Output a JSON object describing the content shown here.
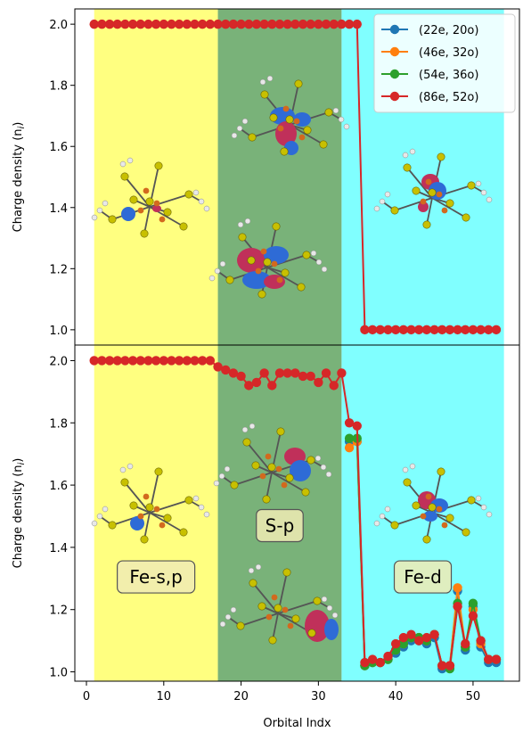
{
  "chart_data": {
    "type": "line",
    "shared_x_axis": {
      "xlabel": "Orbital Indx",
      "xlim": [
        -1.5,
        56
      ],
      "ticks": [
        0,
        10,
        20,
        30,
        40,
        50
      ],
      "tick_labels": [
        "0",
        "10",
        "20",
        "30",
        "40",
        "50"
      ]
    },
    "legend": {
      "placement": "top-right",
      "entries": [
        {
          "label": "(22e, 20o)",
          "color": "#1f77b4"
        },
        {
          "label": "(46e, 32o)",
          "color": "#ff7f0e"
        },
        {
          "label": "(54e, 36o)",
          "color": "#2ca02c"
        },
        {
          "label": "(86e, 52o)",
          "color": "#d62728"
        }
      ]
    },
    "regions": [
      {
        "x0": 1,
        "x1": 17,
        "color": "#ffff80"
      },
      {
        "x0": 17,
        "x1": 33,
        "color": "#79b279"
      },
      {
        "x0": 33,
        "x1": 54,
        "color": "#80ffff"
      }
    ],
    "panels": [
      {
        "ylabel": "Charge density (n",
        "ylabel_sub": "i",
        "ylabel_close": ")",
        "ylim": [
          0.95,
          2.05
        ],
        "yticks": [
          1.0,
          1.2,
          1.4,
          1.6,
          1.8,
          2.0
        ],
        "ytick_labels": [
          "1.0",
          "1.2",
          "1.4",
          "1.6",
          "1.8",
          "2.0"
        ],
        "series": [
          {
            "color": "#d62728",
            "start_x": 1,
            "values": [
              2.0,
              2.0,
              2.0,
              2.0,
              2.0,
              2.0,
              2.0,
              2.0,
              2.0,
              2.0,
              2.0,
              2.0,
              2.0,
              2.0,
              2.0,
              2.0,
              2.0,
              2.0,
              2.0,
              2.0,
              2.0,
              2.0,
              2.0,
              2.0,
              2.0,
              2.0,
              2.0,
              2.0,
              2.0,
              2.0,
              2.0,
              2.0,
              2.0,
              2.0,
              2.0,
              1.0,
              1.0,
              1.0,
              1.0,
              1.0,
              1.0,
              1.0,
              1.0,
              1.0,
              1.0,
              1.0,
              1.0,
              1.0,
              1.0,
              1.0,
              1.0,
              1.0,
              1.0
            ]
          }
        ],
        "region_labels": []
      },
      {
        "ylabel": "Charge density (n",
        "ylabel_sub": "i",
        "ylabel_close": ")",
        "ylim": [
          0.97,
          2.05
        ],
        "yticks": [
          1.0,
          1.2,
          1.4,
          1.6,
          1.8,
          2.0
        ],
        "ytick_labels": [
          "1.0",
          "1.2",
          "1.4",
          "1.6",
          "1.8",
          "2.0"
        ],
        "series": [
          {
            "color": "#1f77b4",
            "start_x": 34,
            "values": [
              1.74,
              1.74,
              1.02,
              1.03,
              1.03,
              1.04,
              1.06,
              1.08,
              1.1,
              1.1,
              1.09,
              1.11,
              1.01,
              1.02,
              1.26,
              1.07,
              1.21,
              1.08,
              1.03,
              1.03
            ]
          },
          {
            "color": "#ff7f0e",
            "start_x": 34,
            "values": [
              1.72,
              1.74,
              1.02,
              1.03,
              1.03,
              1.04,
              1.07,
              1.09,
              1.11,
              1.11,
              1.1,
              1.12,
              1.02,
              1.02,
              1.27,
              1.08,
              1.2,
              1.09,
              1.04,
              1.04
            ]
          },
          {
            "color": "#2ca02c",
            "start_x": 34,
            "values": [
              1.75,
              1.75,
              1.02,
              1.03,
              1.03,
              1.04,
              1.07,
              1.09,
              1.11,
              1.11,
              1.1,
              1.12,
              1.02,
              1.01,
              1.22,
              1.08,
              1.22,
              1.1,
              1.04,
              1.04
            ]
          },
          {
            "color": "#d62728",
            "start_x": 1,
            "values": [
              2.0,
              2.0,
              2.0,
              2.0,
              2.0,
              2.0,
              2.0,
              2.0,
              2.0,
              2.0,
              2.0,
              2.0,
              2.0,
              2.0,
              2.0,
              2.0,
              1.98,
              1.97,
              1.96,
              1.95,
              1.92,
              1.93,
              1.96,
              1.92,
              1.96,
              1.96,
              1.96,
              1.95,
              1.95,
              1.93,
              1.96,
              1.92,
              1.96,
              1.8,
              1.79,
              1.03,
              1.04,
              1.03,
              1.05,
              1.09,
              1.11,
              1.12,
              1.1,
              1.11,
              1.12,
              1.02,
              1.02,
              1.21,
              1.09,
              1.18,
              1.1,
              1.04,
              1.04
            ]
          }
        ],
        "region_labels": [
          {
            "text": "Fe-s,p",
            "x": 9,
            "y": 1.305
          },
          {
            "text": "S-p",
            "x": 25,
            "y": 1.47
          },
          {
            "text": "Fe-d",
            "x": 43.5,
            "y": 1.305
          }
        ]
      }
    ]
  }
}
